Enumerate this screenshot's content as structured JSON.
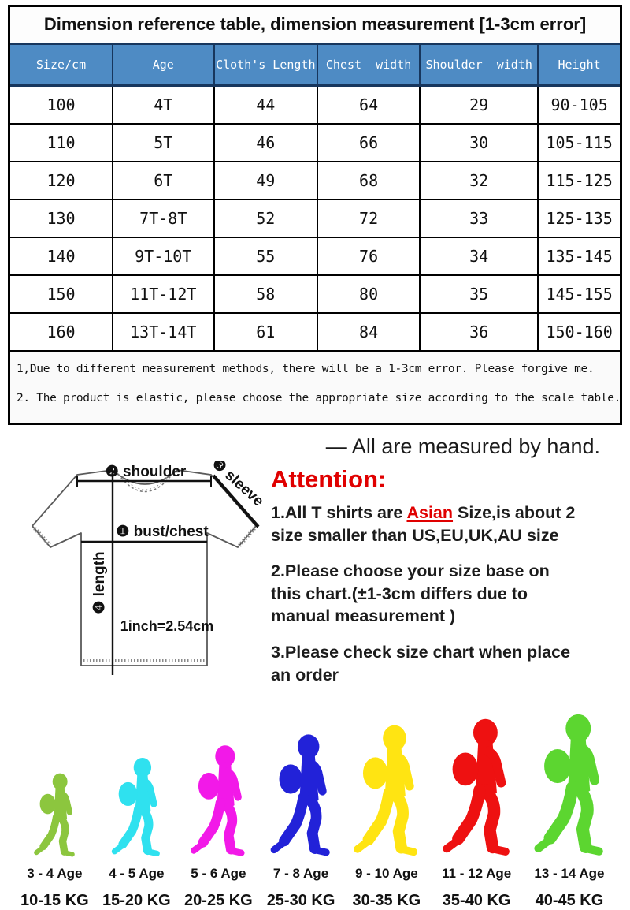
{
  "size_table": {
    "title": "Dimension reference table, dimension measurement [1-3cm error]",
    "header_bg": "#4E8BC4",
    "header_border": "#17365D",
    "columns": [
      "Size/cm",
      "Age",
      "Cloth's Length",
      "Chest  width",
      "Shoulder  width",
      "Height"
    ],
    "rows": [
      [
        "100",
        "4T",
        "44",
        "64",
        "29",
        "90-105"
      ],
      [
        "110",
        "5T",
        "46",
        "66",
        "30",
        "105-115"
      ],
      [
        "120",
        "6T",
        "49",
        "68",
        "32",
        "115-125"
      ],
      [
        "130",
        "7T-8T",
        "52",
        "72",
        "33",
        "125-135"
      ],
      [
        "140",
        "9T-10T",
        "55",
        "76",
        "34",
        "135-145"
      ],
      [
        "150",
        "11T-12T",
        "58",
        "80",
        "35",
        "145-155"
      ],
      [
        "160",
        "13T-14T",
        "61",
        "84",
        "36",
        "150-160"
      ]
    ],
    "notes": [
      "1,Due to different measurement methods, there will be a 1-3cm error. Please forgive me.",
      "2. The product is elastic, please choose the appropriate size according to the scale table."
    ]
  },
  "measured_by_hand": "— All are measured by hand.",
  "diagram": {
    "shoulder_label": "❷ shoulder",
    "sleeve_label": "❸ sleeve",
    "bust_label": "❶ bust/chest",
    "length_label": "❹ length",
    "scale_label": "1inch=2.54cm"
  },
  "attention": {
    "title": "Attention:",
    "title_color": "#E00000",
    "item1_line1_pre": "1.All T shirts are ",
    "item1_line1_highlight": "Asian",
    "item1_line1_post": " Size,is about 2",
    "item1_line2": "size smaller than US,EU,UK,AU size",
    "item2_lines": [
      "2.Please choose your size base on",
      "this chart.(±1-3cm differs due to",
      "manual measurement )"
    ],
    "item3_lines": [
      "3.Please check size chart when place",
      "an order"
    ]
  },
  "kids": [
    {
      "age": "3 - 4 Age",
      "weight": "10-15 KG",
      "color": "#8CC63E",
      "height": 110
    },
    {
      "age": "4 - 5 Age",
      "weight": "15-20 KG",
      "color": "#2FE1EF",
      "height": 130
    },
    {
      "age": "5 - 6 Age",
      "weight": "20-25 KG",
      "color": "#F219E8",
      "height": 146
    },
    {
      "age": "7 - 8 Age",
      "weight": "25-30 KG",
      "color": "#2222D8",
      "height": 160
    },
    {
      "age": "9 - 10 Age",
      "weight": "30-35 KG",
      "color": "#FFE412",
      "height": 172
    },
    {
      "age": "11 - 12 Age",
      "weight": "35-40 KG",
      "color": "#EE1111",
      "height": 180
    },
    {
      "age": "13 - 14 Age",
      "weight": "40-45 KG",
      "color": "#5CD630",
      "height": 186
    }
  ]
}
